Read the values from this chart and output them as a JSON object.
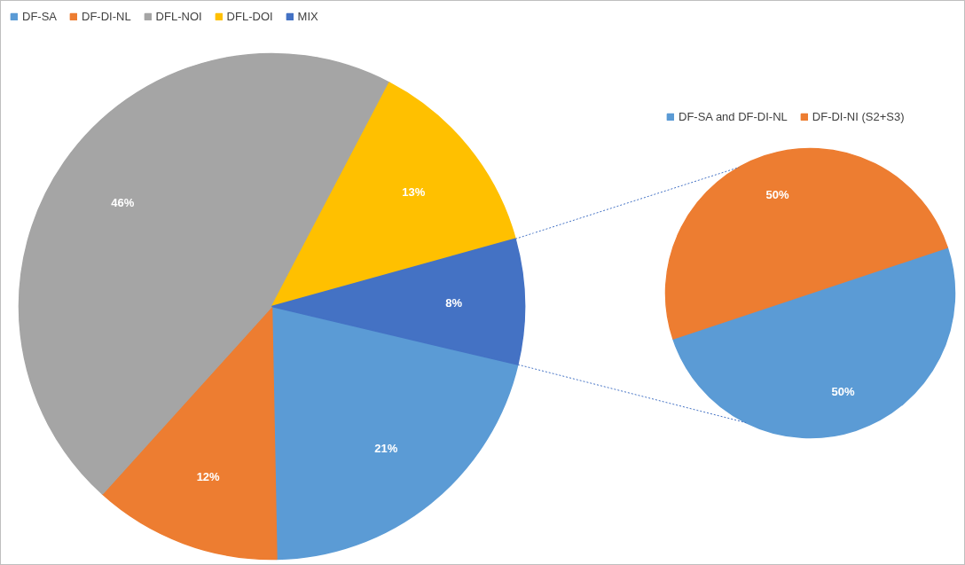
{
  "chart_data": [
    {
      "type": "pie",
      "categories": [
        "DF-SA",
        "DF-DI-NL",
        "DFL-NOI",
        "DFL-DOI",
        "MIX"
      ],
      "values": [
        21,
        12,
        46,
        13,
        8
      ],
      "colors": [
        "#5b9bd5",
        "#ed7d31",
        "#a5a5a5",
        "#ffc000",
        "#4472c4"
      ],
      "value_labels": [
        "21%",
        "12%",
        "46%",
        "13%",
        "8%"
      ],
      "legend": "top left"
    },
    {
      "type": "pie",
      "categories": [
        "DF-SA and DF-DI-NL",
        "DF-DI-NI (S2+S3)"
      ],
      "values": [
        50,
        50
      ],
      "colors": [
        "#5b9bd5",
        "#ed7d31"
      ],
      "value_labels": [
        "50%",
        "50%"
      ],
      "legend": "top"
    }
  ]
}
